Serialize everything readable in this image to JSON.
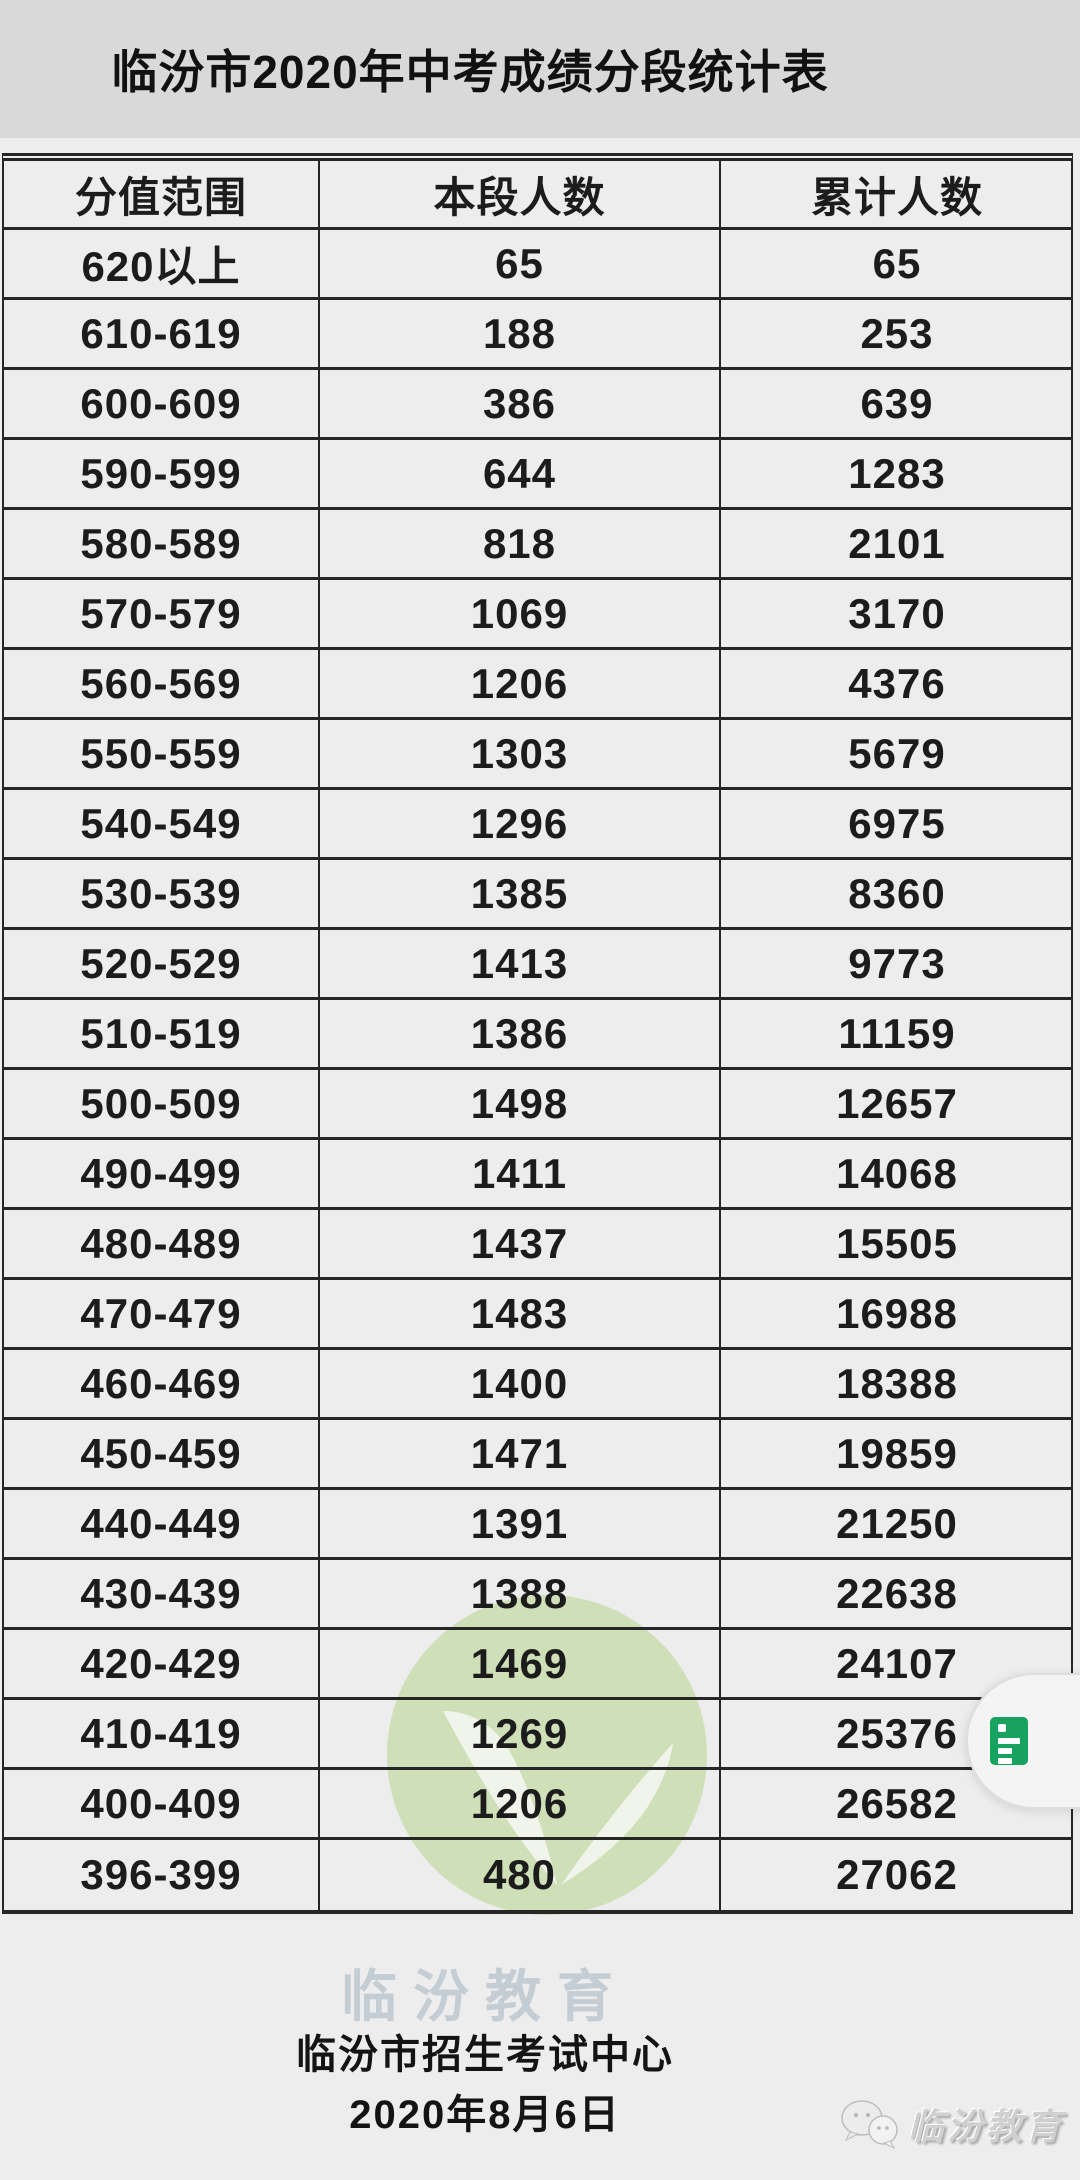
{
  "title": "临汾市2020年中考成绩分段统计表",
  "table": {
    "headers": [
      "分值范围",
      "本段人数",
      "累计人数"
    ],
    "rows": [
      [
        "620以上",
        "65",
        "65"
      ],
      [
        "610-619",
        "188",
        "253"
      ],
      [
        "600-609",
        "386",
        "639"
      ],
      [
        "590-599",
        "644",
        "1283"
      ],
      [
        "580-589",
        "818",
        "2101"
      ],
      [
        "570-579",
        "1069",
        "3170"
      ],
      [
        "560-569",
        "1206",
        "4376"
      ],
      [
        "550-559",
        "1303",
        "5679"
      ],
      [
        "540-549",
        "1296",
        "6975"
      ],
      [
        "530-539",
        "1385",
        "8360"
      ],
      [
        "520-529",
        "1413",
        "9773"
      ],
      [
        "510-519",
        "1386",
        "11159"
      ],
      [
        "500-509",
        "1498",
        "12657"
      ],
      [
        "490-499",
        "1411",
        "14068"
      ],
      [
        "480-489",
        "1437",
        "15505"
      ],
      [
        "470-479",
        "1483",
        "16988"
      ],
      [
        "460-469",
        "1400",
        "18388"
      ],
      [
        "450-459",
        "1471",
        "19859"
      ],
      [
        "440-449",
        "1391",
        "21250"
      ],
      [
        "430-439",
        "1388",
        "22638"
      ],
      [
        "420-429",
        "1469",
        "24107"
      ],
      [
        "410-419",
        "1269",
        "25376"
      ],
      [
        "400-409",
        "1206",
        "26582"
      ],
      [
        "396-399",
        "480",
        "27062"
      ]
    ]
  },
  "footer": {
    "org": "临汾市招生考试中心",
    "date": "2020年8月6日"
  },
  "watermarks": {
    "center_text": "临汾教育",
    "corner_text": "临汾教育",
    "leaf_logo": "leaf-circle-logo",
    "corner_logo": "wechat-logo-icon"
  },
  "floating_button": {
    "icon": "doc-list-icon"
  },
  "colors": {
    "title_band": "#d9d9d9",
    "sheet_background": "#ededed",
    "table_border": "#262626",
    "accent_green": "#17a35f",
    "watermark_green": "#b7d38b",
    "watermark_text": "#c2ccd3"
  }
}
